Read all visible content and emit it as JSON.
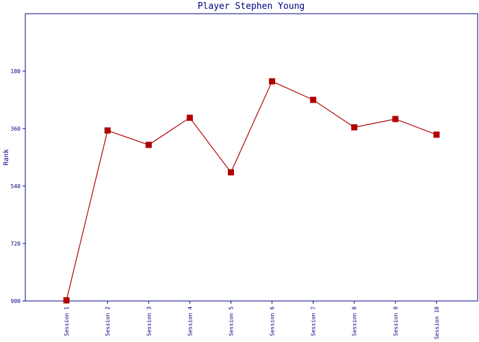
{
  "chart_data": {
    "type": "line",
    "title": "Player Stephen Young",
    "y_label": "Rank",
    "categories": [
      "Session 1",
      "Session 2",
      "Session 3",
      "Session 4",
      "Session 5",
      "Session 6",
      "Session 7",
      "Session 8",
      "Session 9",
      "Session 10"
    ],
    "series": [
      {
        "name": "Rank",
        "color": "#b00000",
        "values": [
          898,
          366,
          411,
          326,
          497,
          212,
          270,
          356,
          330,
          379
        ]
      }
    ],
    "ylim": [
      0,
      900
    ],
    "yticks": [
      180,
      360,
      540,
      720,
      900
    ],
    "y_inverted": true,
    "grid": false,
    "legend": false
  }
}
